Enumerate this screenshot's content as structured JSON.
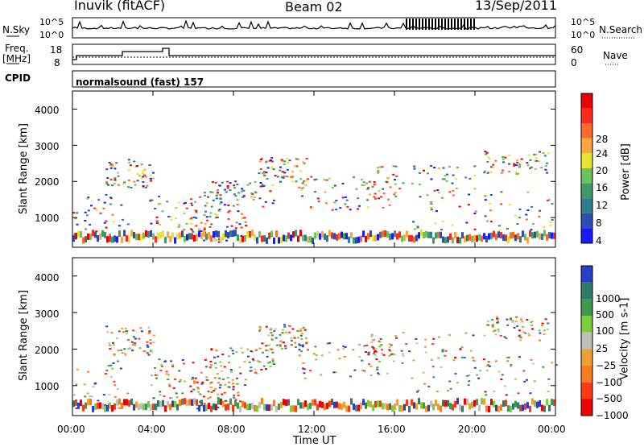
{
  "header": {
    "station": "Inuvik (fitACF)",
    "beam": "Beam 02",
    "date": "13/Sep/2011"
  },
  "strips": {
    "nsky_label": "N.Sky",
    "nsky_ticks": [
      "10^5",
      "10^0"
    ],
    "nsearch_label": "N.Search",
    "nsearch_ticks": [
      "10^5",
      "10^0"
    ],
    "freq_label_1": "Freq.",
    "freq_label_2": "[MHz]",
    "freq_ticks": [
      "18",
      "8"
    ],
    "nave_label": "Nave",
    "nave_ticks": [
      "60",
      "0"
    ],
    "cpid_label": "CPID",
    "cpid_value": "normalsound (fast) 157"
  },
  "chart_data": [
    {
      "type": "heatmap",
      "name": "power-panel",
      "ylabel": "Slant Range [km]",
      "yticks": [
        "1000",
        "2000",
        "3000",
        "4000"
      ],
      "ylim": [
        180,
        4500
      ],
      "xlim": [
        0,
        24
      ],
      "xticks": [
        "00:00",
        "04:00",
        "08:00",
        "12:00",
        "16:00",
        "20:00",
        "00:00"
      ],
      "colorbar": {
        "label": "Power [dB]",
        "ticks": [
          "28",
          "24",
          "20",
          "16",
          "12",
          "8",
          "4"
        ],
        "colors": [
          "#1a1aff",
          "#2b4fb3",
          "#2e7d8a",
          "#3f9a6a",
          "#6cc35a",
          "#e6e632",
          "#ffa640",
          "#ff6a2a",
          "#ff2a1a",
          "#ee0000"
        ]
      }
    },
    {
      "type": "heatmap",
      "name": "velocity-panel",
      "ylabel": "Slant Range [km]",
      "yticks": [
        "1000",
        "2000",
        "3000",
        "4000"
      ],
      "ylim": [
        180,
        4500
      ],
      "xlim": [
        0,
        24
      ],
      "xticks": [
        "00:00",
        "04:00",
        "08:00",
        "12:00",
        "16:00",
        "20:00",
        "00:00"
      ],
      "xlabel": "Time UT",
      "colorbar": {
        "label": "Velocity [m s-1]",
        "ticks": [
          "1000",
          "500",
          "100",
          "25",
          "−25",
          "−100",
          "−500",
          "−1000"
        ],
        "colors": [
          "#2a3fc8",
          "#2e7b6a",
          "#3f9a50",
          "#7ccd3a",
          "#c0c0b8",
          "#f0a030",
          "#ff7a18",
          "#ff3a10",
          "#ee0000"
        ]
      }
    }
  ]
}
